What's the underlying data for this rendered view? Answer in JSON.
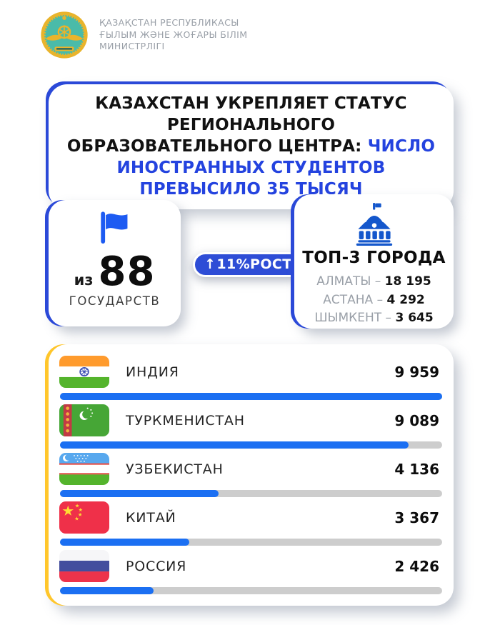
{
  "colors": {
    "accent_blue": "#2B49D8",
    "title_blue": "#2443DF",
    "badge_blue": "#2E4DD6",
    "bar_blue": "#1B6FF2",
    "bar_track": "#CDCDCD",
    "card_yellow": "#FFC62B",
    "flag_icon_blue": "#1D5BF2",
    "building_icon_blue": "#1457CC",
    "text_gray": "#9AA0A8",
    "emblem_teal": "#4ABBA9",
    "emblem_gold": "#E9B42C"
  },
  "header": {
    "ministry_name_lines": [
      "ҚАЗАҚСТАН РЕСПУБЛИКАСЫ",
      "ҒЫЛЫМ ЖӘНЕ ЖОҒАРЫ БІЛІМ",
      "МИНИСТРЛІГІ"
    ]
  },
  "title_card": {
    "text_black": "КАЗАХСТАН УКРЕПЛЯЕТ СТАТУС РЕГИОНАЛЬНОГО ОБРАЗОВАТЕЛЬНОГО ЦЕНТРА: ",
    "text_blue": "ЧИСЛО ИНОСТРАННЫХ СТУДЕНТОВ ПРЕВЫСИЛО 35 ТЫСЯЧ"
  },
  "origin_card": {
    "prefix": "из",
    "count": "88",
    "label": "ГОСУДАРСТВ",
    "icon": "waving-flag-icon"
  },
  "growth_badge": {
    "arrow": "↑",
    "label": "11%РОСТ"
  },
  "top_cities_card": {
    "title": "ТОП-3 ГОРОДА",
    "icon": "university-building-icon",
    "separator": "–",
    "cities": [
      {
        "name": "АЛМАТЫ",
        "value": "18 195"
      },
      {
        "name": "АСТАНА",
        "value": "4 292"
      },
      {
        "name": "ШЫМКЕНТ",
        "value": "3 645"
      }
    ]
  },
  "chart_data": {
    "type": "bar",
    "orientation": "horizontal",
    "title": "ЧИСЛО ИНОСТРАННЫХ СТУДЕНТОВ ПРЕВЫСИЛО 35 ТЫСЯЧ",
    "categories": [
      "ИНДИЯ",
      "ТУРКМЕНИСТАН",
      "УЗБЕКИСТАН",
      "КИТАЙ",
      "РОССИЯ"
    ],
    "values": [
      9959,
      9089,
      4136,
      3367,
      2426
    ],
    "value_labels": [
      "9 959",
      "9 089",
      "4 136",
      "3 367",
      "2 426"
    ],
    "flags": [
      "india-flag",
      "turkmenistan-flag",
      "uzbekistan-flag",
      "china-flag",
      "russia-flag"
    ],
    "max_value": 9959,
    "bar_color": "#1B6FF2",
    "track_color": "#CDCDCD",
    "grid": false,
    "legend": false
  }
}
